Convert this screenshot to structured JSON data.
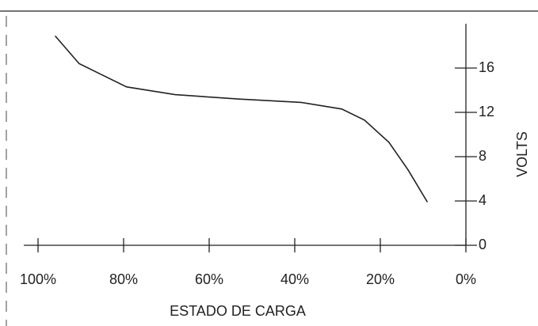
{
  "chart_data": {
    "type": "line",
    "xlabel": "ESTADO DE CARGA",
    "ylabel": "VOLTS",
    "xlim": [
      100,
      0
    ],
    "ylim": [
      0,
      20
    ],
    "xticks": [
      {
        "value": 100,
        "label": "100%"
      },
      {
        "value": 80,
        "label": "80%"
      },
      {
        "value": 60,
        "label": "60%"
      },
      {
        "value": 40,
        "label": "40%"
      },
      {
        "value": 20,
        "label": "20%"
      },
      {
        "value": 0,
        "label": "0%"
      }
    ],
    "yticks": [
      0,
      4,
      8,
      12,
      16
    ],
    "series": [
      {
        "color": "#222222",
        "x": [
          96,
          90.4,
          79.3,
          68,
          53,
          38.5,
          29,
          23.7,
          18,
          13.5,
          9
        ],
        "values": [
          18.9,
          16.4,
          14.3,
          13.6,
          13.2,
          12.9,
          12.3,
          11.3,
          9.3,
          6.8,
          3.9
        ]
      }
    ]
  }
}
